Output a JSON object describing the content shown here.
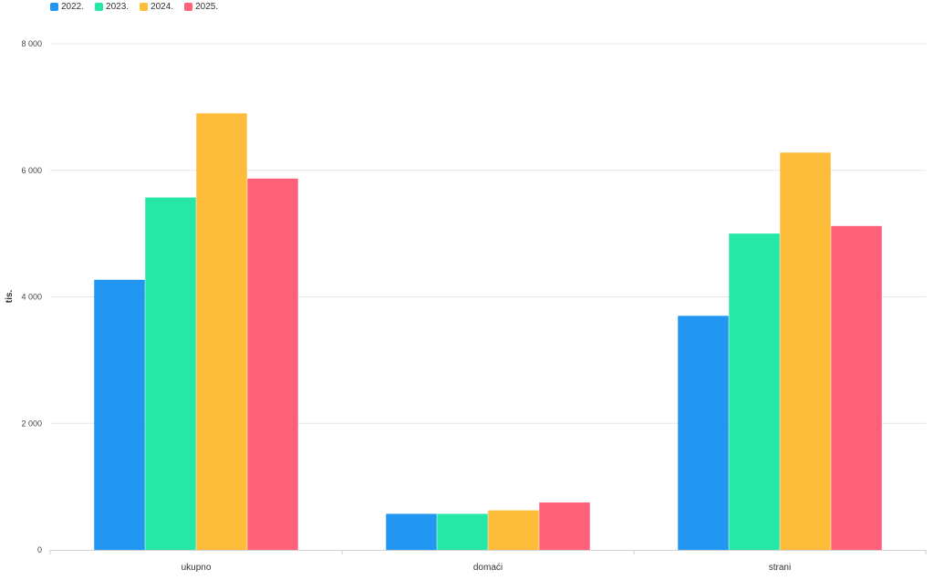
{
  "chart_data": {
    "type": "bar",
    "categories": [
      "ukupno",
      "domaći",
      "strani"
    ],
    "series": [
      {
        "name": "2022.",
        "color": "#2196F3",
        "values": [
          4270,
          570,
          3700
        ]
      },
      {
        "name": "2023.",
        "color": "#26E7A6",
        "values": [
          5570,
          570,
          5000
        ]
      },
      {
        "name": "2024.",
        "color": "#FEBC3B",
        "values": [
          6900,
          625,
          6280
        ]
      },
      {
        "name": "2025.",
        "color": "#FF6178",
        "values": [
          5870,
          750,
          5120
        ]
      }
    ],
    "ylabel": "tis.",
    "ylim": [
      0,
      8000
    ],
    "yticks": [
      0,
      2000,
      4000,
      6000,
      8000
    ],
    "ytick_labels": [
      "0",
      "2 000",
      "4 000",
      "6 000",
      "8 000"
    ],
    "grid": true,
    "legend_position": "top-left"
  }
}
